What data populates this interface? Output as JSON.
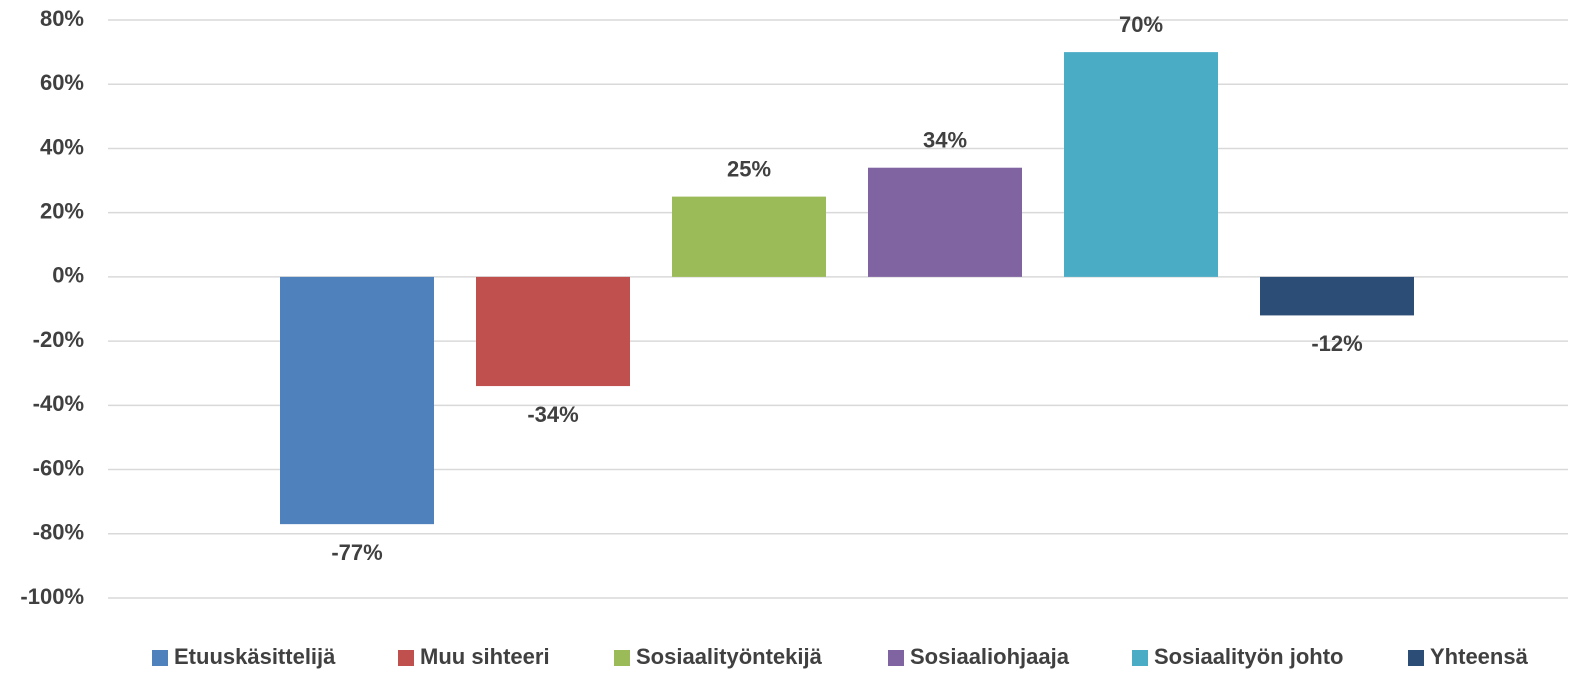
{
  "chart_data": {
    "type": "bar",
    "categories": [
      null
    ],
    "series": [
      {
        "name": "Etuuskäsittelijä",
        "color": "#4f81bd",
        "values": [
          -77
        ],
        "value_labels": [
          "-77%"
        ]
      },
      {
        "name": "Muu sihteeri",
        "color": "#c0504d",
        "values": [
          -34
        ],
        "value_labels": [
          "-34%"
        ]
      },
      {
        "name": "Sosiaalityöntekijä",
        "color": "#9bbb59",
        "values": [
          25
        ],
        "value_labels": [
          "25%"
        ]
      },
      {
        "name": "Sosiaaliohjaaja",
        "color": "#8064a2",
        "values": [
          34
        ],
        "value_labels": [
          "34%"
        ]
      },
      {
        "name": "Sosiaalityön johto",
        "color": "#4bacc6",
        "values": [
          70
        ],
        "value_labels": [
          "70%"
        ]
      },
      {
        "name": "Yhteensä",
        "color": "#2c4d75",
        "values": [
          -12
        ],
        "value_labels": [
          "-12%"
        ]
      }
    ],
    "ylim": [
      -100,
      80
    ],
    "yticks": [
      {
        "value": -100,
        "label": "-100%"
      },
      {
        "value": -80,
        "label": "-80%"
      },
      {
        "value": -60,
        "label": "-60%"
      },
      {
        "value": -40,
        "label": "-40%"
      },
      {
        "value": -20,
        "label": "-20%"
      },
      {
        "value": 0,
        "label": "0%"
      },
      {
        "value": 20,
        "label": "20%"
      },
      {
        "value": 40,
        "label": "40%"
      },
      {
        "value": 60,
        "label": "60%"
      },
      {
        "value": 80,
        "label": "80%"
      }
    ],
    "grid": true,
    "legend": "bottom"
  }
}
